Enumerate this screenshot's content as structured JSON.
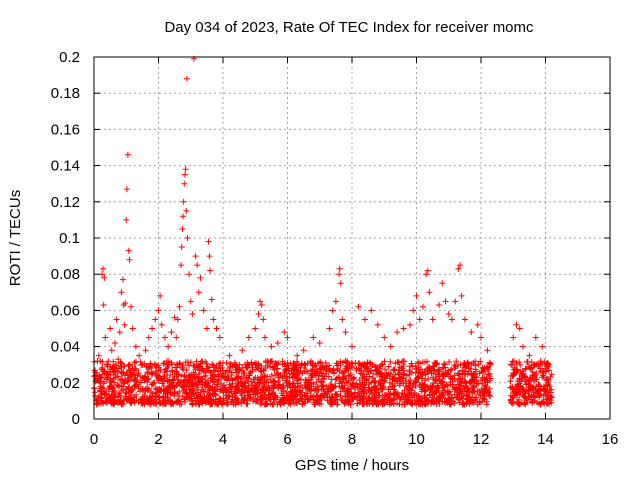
{
  "chart_data": {
    "type": "scatter",
    "title": "Day 034 of 2023, Rate Of TEC Index for receiver momc",
    "xlabel": "GPS time / hours",
    "ylabel": "ROTI / TECUs",
    "xlim": [
      0,
      16
    ],
    "ylim": [
      0,
      0.2
    ],
    "xticks": [
      0,
      2,
      4,
      6,
      8,
      10,
      12,
      14,
      16
    ],
    "yticks": [
      0,
      0.02,
      0.04,
      0.06,
      0.08,
      0.1,
      0.12,
      0.14,
      0.16,
      0.18,
      0.2
    ],
    "xtick_labels": [
      "0",
      "2",
      "4",
      "6",
      "8",
      "10",
      "12",
      "14",
      "16"
    ],
    "ytick_labels": [
      "0",
      "0.02",
      "0.04",
      "0.06",
      "0.08",
      "0.1",
      "0.12",
      "0.14",
      "0.16",
      "0.18",
      "0.2"
    ],
    "grid": true,
    "marker": "+",
    "color": "#ff0000",
    "series": [
      {
        "name": "ROTI",
        "points": [
          [
            0.1,
            0.022
          ],
          [
            0.15,
            0.035
          ],
          [
            0.2,
            0.018
          ],
          [
            0.25,
            0.08
          ],
          [
            0.28,
            0.083
          ],
          [
            0.3,
            0.063
          ],
          [
            0.32,
            0.078
          ],
          [
            0.35,
            0.045
          ],
          [
            0.4,
            0.03
          ],
          [
            0.45,
            0.025
          ],
          [
            0.5,
            0.05
          ],
          [
            0.55,
            0.038
          ],
          [
            0.6,
            0.028
          ],
          [
            0.65,
            0.042
          ],
          [
            0.7,
            0.055
          ],
          [
            0.75,
            0.033
          ],
          [
            0.8,
            0.048
          ],
          [
            0.85,
            0.07
          ],
          [
            0.9,
            0.077
          ],
          [
            0.92,
            0.063
          ],
          [
            0.95,
            0.052
          ],
          [
            0.97,
            0.064
          ],
          [
            1.0,
            0.11
          ],
          [
            1.02,
            0.127
          ],
          [
            1.05,
            0.146
          ],
          [
            1.08,
            0.093
          ],
          [
            1.1,
            0.088
          ],
          [
            1.15,
            0.062
          ],
          [
            1.2,
            0.05
          ],
          [
            1.3,
            0.04
          ],
          [
            1.4,
            0.035
          ],
          [
            1.5,
            0.03
          ],
          [
            1.6,
            0.038
          ],
          [
            1.7,
            0.045
          ],
          [
            1.8,
            0.05
          ],
          [
            1.9,
            0.055
          ],
          [
            2.0,
            0.06
          ],
          [
            2.05,
            0.068
          ],
          [
            2.1,
            0.052
          ],
          [
            2.2,
            0.045
          ],
          [
            2.3,
            0.04
          ],
          [
            2.4,
            0.048
          ],
          [
            2.5,
            0.056
          ],
          [
            2.55,
            0.045
          ],
          [
            2.6,
            0.055
          ],
          [
            2.65,
            0.062
          ],
          [
            2.7,
            0.085
          ],
          [
            2.72,
            0.095
          ],
          [
            2.74,
            0.105
          ],
          [
            2.76,
            0.112
          ],
          [
            2.78,
            0.12
          ],
          [
            2.8,
            0.13
          ],
          [
            2.82,
            0.135
          ],
          [
            2.84,
            0.138
          ],
          [
            2.86,
            0.115
          ],
          [
            2.88,
            0.188
          ],
          [
            2.9,
            0.1
          ],
          [
            2.95,
            0.08
          ],
          [
            3.0,
            0.065
          ],
          [
            3.05,
            0.058
          ],
          [
            3.1,
            0.199
          ],
          [
            3.15,
            0.09
          ],
          [
            3.2,
            0.085
          ],
          [
            3.25,
            0.07
          ],
          [
            3.3,
            0.078
          ],
          [
            3.4,
            0.06
          ],
          [
            3.5,
            0.05
          ],
          [
            3.55,
            0.098
          ],
          [
            3.58,
            0.09
          ],
          [
            3.6,
            0.082
          ],
          [
            3.65,
            0.066
          ],
          [
            3.7,
            0.055
          ],
          [
            3.8,
            0.05
          ],
          [
            3.9,
            0.045
          ],
          [
            4.2,
            0.035
          ],
          [
            4.4,
            0.03
          ],
          [
            4.6,
            0.038
          ],
          [
            4.8,
            0.045
          ],
          [
            5.0,
            0.05
          ],
          [
            5.1,
            0.058
          ],
          [
            5.15,
            0.065
          ],
          [
            5.2,
            0.063
          ],
          [
            5.25,
            0.055
          ],
          [
            5.3,
            0.045
          ],
          [
            5.5,
            0.04
          ],
          [
            5.7,
            0.042
          ],
          [
            5.9,
            0.048
          ],
          [
            6.0,
            0.045
          ],
          [
            6.3,
            0.035
          ],
          [
            6.5,
            0.038
          ],
          [
            6.8,
            0.045
          ],
          [
            7.0,
            0.042
          ],
          [
            7.3,
            0.05
          ],
          [
            7.4,
            0.06
          ],
          [
            7.5,
            0.065
          ],
          [
            7.6,
            0.08
          ],
          [
            7.62,
            0.083
          ],
          [
            7.65,
            0.075
          ],
          [
            7.7,
            0.055
          ],
          [
            7.8,
            0.048
          ],
          [
            8.0,
            0.04
          ],
          [
            8.2,
            0.062
          ],
          [
            8.4,
            0.055
          ],
          [
            8.6,
            0.06
          ],
          [
            8.8,
            0.052
          ],
          [
            9.0,
            0.045
          ],
          [
            9.2,
            0.04
          ],
          [
            9.4,
            0.048
          ],
          [
            9.6,
            0.05
          ],
          [
            9.8,
            0.052
          ],
          [
            9.9,
            0.06
          ],
          [
            10.0,
            0.068
          ],
          [
            10.1,
            0.055
          ],
          [
            10.2,
            0.062
          ],
          [
            10.3,
            0.08
          ],
          [
            10.35,
            0.082
          ],
          [
            10.4,
            0.07
          ],
          [
            10.5,
            0.055
          ],
          [
            10.7,
            0.063
          ],
          [
            10.8,
            0.075
          ],
          [
            10.9,
            0.065
          ],
          [
            11.0,
            0.058
          ],
          [
            11.1,
            0.055
          ],
          [
            11.2,
            0.065
          ],
          [
            11.3,
            0.083
          ],
          [
            11.35,
            0.085
          ],
          [
            11.4,
            0.068
          ],
          [
            11.5,
            0.055
          ],
          [
            11.7,
            0.048
          ],
          [
            11.9,
            0.052
          ],
          [
            12.0,
            0.045
          ],
          [
            12.2,
            0.038
          ],
          [
            12.3,
            0.03
          ],
          [
            13.0,
            0.045
          ],
          [
            13.1,
            0.052
          ],
          [
            13.2,
            0.05
          ],
          [
            13.3,
            0.04
          ],
          [
            13.5,
            0.035
          ],
          [
            13.7,
            0.045
          ],
          [
            13.9,
            0.04
          ],
          [
            14.1,
            0.03
          ]
        ],
        "dense_band": {
          "segments": [
            [
              0.0,
              4.0
            ],
            [
              4.0,
              12.3
            ],
            [
              12.9,
              14.2
            ]
          ],
          "level_low": 0.008,
          "level_high": 0.032,
          "typical": 0.02
        }
      }
    ]
  }
}
